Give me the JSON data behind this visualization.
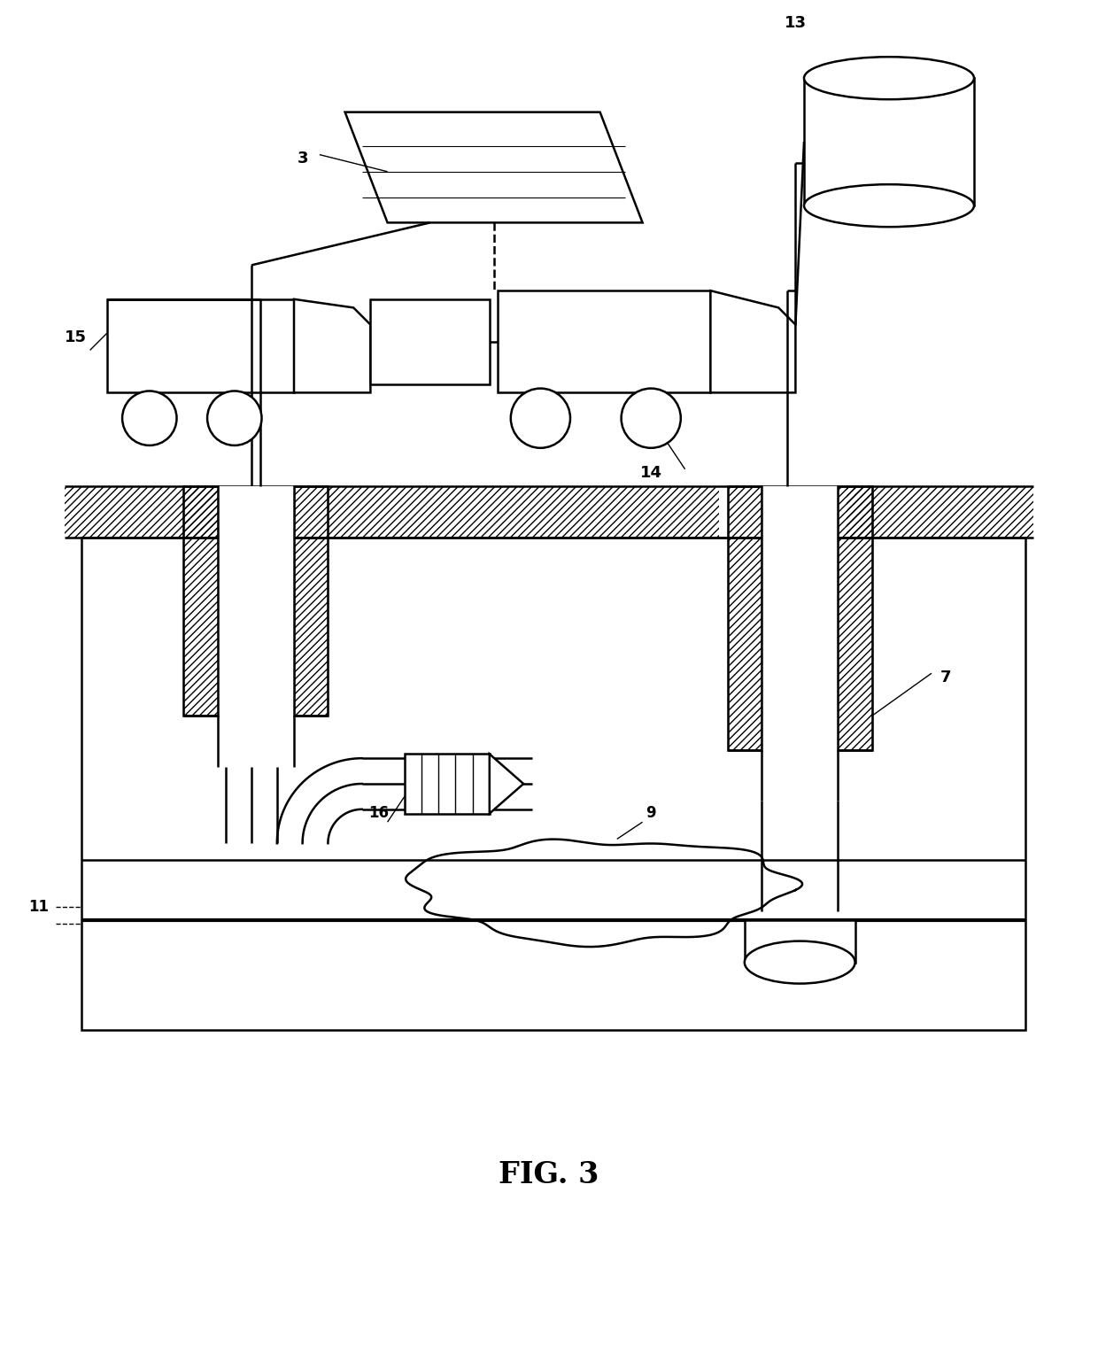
{
  "title": "FIG. 3",
  "bg_color": "#ffffff",
  "fig_width": 12.4,
  "fig_height": 15.3,
  "lw_main": 1.8,
  "lw_thick": 3.0,
  "lw_thin": 1.0
}
